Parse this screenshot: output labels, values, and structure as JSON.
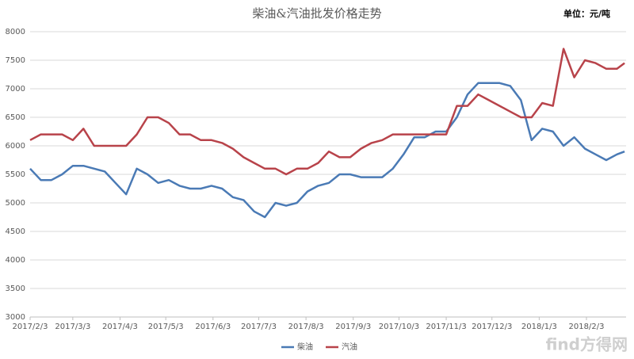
{
  "chart_data": {
    "type": "line",
    "title": "柴油&汽油批发价格走势",
    "unit_label": "单位：元/吨",
    "watermark": "find方得网",
    "x": [
      "2017/2/3",
      "2017/2/10",
      "2017/2/17",
      "2017/2/24",
      "2017/3/3",
      "2017/3/10",
      "2017/3/17",
      "2017/3/24",
      "2017/3/31",
      "2017/4/7",
      "2017/4/14",
      "2017/4/21",
      "2017/4/28",
      "2017/5/5",
      "2017/5/12",
      "2017/5/19",
      "2017/5/26",
      "2017/6/2",
      "2017/6/9",
      "2017/6/16",
      "2017/6/23",
      "2017/6/30",
      "2017/7/7",
      "2017/7/14",
      "2017/7/21",
      "2017/7/28",
      "2017/8/4",
      "2017/8/11",
      "2017/8/18",
      "2017/8/25",
      "2017/9/1",
      "2017/9/8",
      "2017/9/15",
      "2017/9/22",
      "2017/9/29",
      "2017/10/6",
      "2017/10/13",
      "2017/10/20",
      "2017/10/27",
      "2017/11/3",
      "2017/11/10",
      "2017/11/17",
      "2017/11/24",
      "2017/12/1",
      "2017/12/8",
      "2017/12/15",
      "2017/12/22",
      "2017/12/29",
      "2018/1/5",
      "2018/1/12",
      "2018/1/19",
      "2018/1/26",
      "2018/2/2",
      "2018/2/9",
      "2018/2/16",
      "2018/2/23",
      "2018/2/28"
    ],
    "series": [
      {
        "name": "柴油",
        "color": "#4a7ab5",
        "values": [
          5600,
          5400,
          5400,
          5500,
          5650,
          5650,
          5600,
          5550,
          5350,
          5150,
          5600,
          5500,
          5350,
          5400,
          5300,
          5250,
          5250,
          5300,
          5250,
          5100,
          5050,
          4850,
          4750,
          5000,
          4950,
          5000,
          5200,
          5300,
          5350,
          5500,
          5500,
          5450,
          5450,
          5450,
          5600,
          5850,
          6150,
          6150,
          6250,
          6250,
          6500,
          6900,
          7100,
          7100,
          7100,
          7050,
          6800,
          6100,
          6300,
          6250,
          6000,
          6150,
          5950,
          5850,
          5750,
          5850,
          5900
        ]
      },
      {
        "name": "汽油",
        "color": "#b8434a",
        "values": [
          6100,
          6200,
          6200,
          6200,
          6100,
          6300,
          6000,
          6000,
          6000,
          6000,
          6200,
          6500,
          6500,
          6400,
          6200,
          6200,
          6100,
          6100,
          6050,
          5950,
          5800,
          5700,
          5600,
          5600,
          5500,
          5600,
          5600,
          5700,
          5900,
          5800,
          5800,
          5950,
          6050,
          6100,
          6200,
          6200,
          6200,
          6200,
          6200,
          6200,
          6700,
          6700,
          6900,
          6800,
          6700,
          6600,
          6500,
          6500,
          6750,
          6700,
          7700,
          7200,
          7500,
          7450,
          7350,
          7350,
          7450
        ]
      }
    ],
    "xlim": [
      "2017/2/3",
      "2018/3/1"
    ],
    "xticks": [
      "2017/2/3",
      "2017/3/3",
      "2017/4/3",
      "2017/5/3",
      "2017/6/3",
      "2017/7/3",
      "2017/8/3",
      "2017/9/3",
      "2017/10/3",
      "2017/11/3",
      "2017/12/3",
      "2018/1/3",
      "2018/2/3"
    ],
    "ylim": [
      3000,
      8000
    ],
    "yticks": [
      3000,
      3500,
      4000,
      4500,
      5000,
      5500,
      6000,
      6500,
      7000,
      7500,
      8000
    ],
    "grid": true,
    "legend": "bottom"
  }
}
